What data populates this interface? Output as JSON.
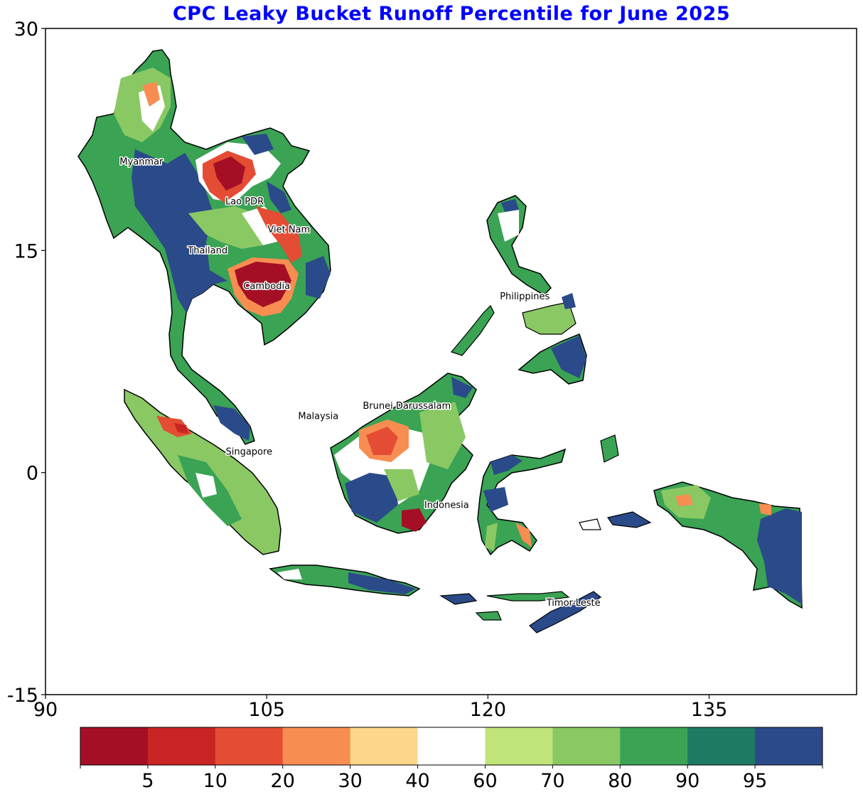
{
  "title": "CPC Leaky Bucket Runoff Percentile for June 2025",
  "map": {
    "x_ticks": [
      {
        "lon": 90,
        "label": "90"
      },
      {
        "lon": 105,
        "label": "105"
      },
      {
        "lon": 120,
        "label": "120"
      },
      {
        "lon": 135,
        "label": "135"
      }
    ],
    "y_ticks": [
      {
        "lat": 30,
        "label": "30"
      },
      {
        "lat": 15,
        "label": "15"
      },
      {
        "lat": 0,
        "label": "0"
      },
      {
        "lat": -15,
        "label": "-15"
      }
    ],
    "lon_range": [
      90,
      145
    ],
    "lat_range": [
      -15,
      30
    ],
    "country_labels": [
      {
        "name": "Myanmar",
        "lon": 96.5,
        "lat": 21.0
      },
      {
        "name": "Lao PDR",
        "lon": 103.5,
        "lat": 18.3
      },
      {
        "name": "Viet Nam",
        "lon": 106.5,
        "lat": 16.4
      },
      {
        "name": "Thailand",
        "lon": 101.0,
        "lat": 15.0
      },
      {
        "name": "Cambodia",
        "lon": 105.0,
        "lat": 12.6
      },
      {
        "name": "Philippines",
        "lon": 122.5,
        "lat": 11.9
      },
      {
        "name": "Brunei Darussalam",
        "lon": 114.5,
        "lat": 4.5
      },
      {
        "name": "Malaysia",
        "lon": 108.5,
        "lat": 3.8
      },
      {
        "name": "Singapore",
        "lon": 103.8,
        "lat": 1.4
      },
      {
        "name": "Indonesia",
        "lon": 117.2,
        "lat": -2.2
      },
      {
        "name": "Timor-Leste",
        "lon": 125.8,
        "lat": -8.8
      }
    ]
  },
  "colorbar": {
    "colors": [
      "#a50f26",
      "#c92424",
      "#e44d34",
      "#f88d52",
      "#fed68b",
      "#ffffff",
      "#c0e47a",
      "#8ac864",
      "#3aa354",
      "#1f7a63",
      "#2b4a8a"
    ],
    "boundary_labels": [
      "5",
      "10",
      "20",
      "30",
      "40",
      "60",
      "70",
      "80",
      "90",
      "95"
    ]
  }
}
